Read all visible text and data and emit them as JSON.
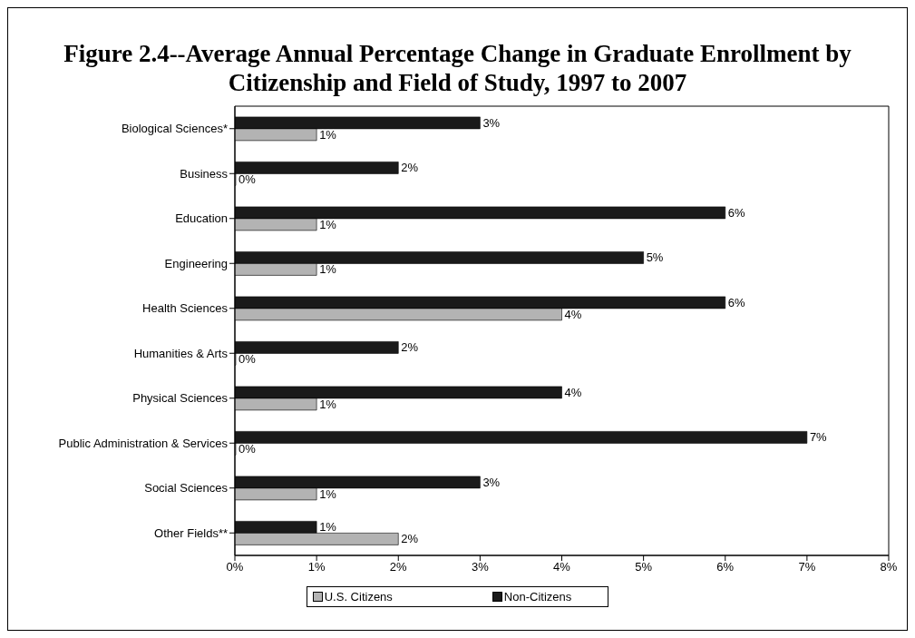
{
  "chart_data": {
    "type": "bar",
    "orientation": "horizontal",
    "title": "Figure 2.4--Average Annual Percentage Change in Graduate Enrollment by Citizenship and Field of Study, 1997 to 2007",
    "categories": [
      "Biological Sciences*",
      "Business",
      "Education",
      "Engineering",
      "Health Sciences",
      "Humanities & Arts",
      "Physical Sciences",
      "Public Administration & Services",
      "Social Sciences",
      "Other Fields**"
    ],
    "series": [
      {
        "name": "U.S. Citizens",
        "color": "#b3b3b3",
        "values": [
          1,
          0,
          1,
          1,
          4,
          0,
          1,
          0,
          1,
          2
        ],
        "value_labels": [
          "1%",
          "0%",
          "1%",
          "1%",
          "4%",
          "0%",
          "1%",
          "0%",
          "1%",
          "2%"
        ]
      },
      {
        "name": "Non-Citizens",
        "color": "#1a1a1a",
        "values": [
          3,
          2,
          6,
          5,
          6,
          2,
          4,
          7,
          3,
          1
        ],
        "value_labels": [
          "3%",
          "2%",
          "6%",
          "5%",
          "6%",
          "2%",
          "4%",
          "7%",
          "3%",
          "1%"
        ]
      }
    ],
    "xlim": [
      0,
      8
    ],
    "xticks": [
      {
        "value": 0,
        "label": "0%"
      },
      {
        "value": 1,
        "label": "1%"
      },
      {
        "value": 2,
        "label": "2%"
      },
      {
        "value": 3,
        "label": "3%"
      },
      {
        "value": 4,
        "label": "4%"
      },
      {
        "value": 5,
        "label": "5%"
      },
      {
        "value": 6,
        "label": "6%"
      },
      {
        "value": 7,
        "label": "7%"
      },
      {
        "value": 8,
        "label": "8%"
      }
    ],
    "grid": false,
    "legend": "bottom"
  }
}
